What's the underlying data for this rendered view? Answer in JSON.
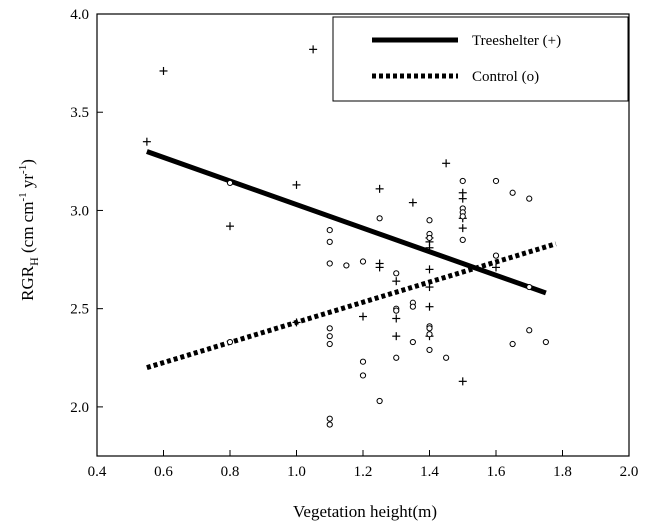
{
  "chart_data": {
    "type": "scatter",
    "title": "",
    "xlabel": "Vegetation height(m)",
    "ylabel": {
      "main": "RGR",
      "sub": "H",
      "unit_open": " (cm cm",
      "exp1": "-1",
      "unit_mid": " yr",
      "exp2": "-1",
      "unit_close": ")"
    },
    "xlim": [
      0.4,
      2.0
    ],
    "ylim": [
      1.75,
      4.0
    ],
    "x_ticks": [
      "0.4",
      "0.6",
      "0.8",
      "1.0",
      "1.2",
      "1.4",
      "1.6",
      "1.8",
      "2.0"
    ],
    "y_ticks": [
      "2.0",
      "2.5",
      "3.0",
      "3.5",
      "4.0"
    ],
    "legend_position": "top-right",
    "series": [
      {
        "name": "Treeshelter (+)",
        "marker": "+",
        "line_style": "solid",
        "regression": {
          "x": [
            0.55,
            1.75
          ],
          "y": [
            3.3,
            2.58
          ]
        },
        "points": [
          [
            0.55,
            3.35
          ],
          [
            0.6,
            3.71
          ],
          [
            0.8,
            2.92
          ],
          [
            1.0,
            3.13
          ],
          [
            1.0,
            2.43
          ],
          [
            1.05,
            3.82
          ],
          [
            1.2,
            2.46
          ],
          [
            1.25,
            3.11
          ],
          [
            1.25,
            2.73
          ],
          [
            1.25,
            2.71
          ],
          [
            1.3,
            2.64
          ],
          [
            1.3,
            2.45
          ],
          [
            1.3,
            2.36
          ],
          [
            1.35,
            3.04
          ],
          [
            1.4,
            2.86
          ],
          [
            1.4,
            2.84
          ],
          [
            1.4,
            2.81
          ],
          [
            1.4,
            2.7
          ],
          [
            1.4,
            2.61
          ],
          [
            1.4,
            2.51
          ],
          [
            1.4,
            2.36
          ],
          [
            1.45,
            3.24
          ],
          [
            1.5,
            3.09
          ],
          [
            1.5,
            3.06
          ],
          [
            1.5,
            2.96
          ],
          [
            1.5,
            2.91
          ],
          [
            1.5,
            2.13
          ],
          [
            1.6,
            2.71
          ]
        ]
      },
      {
        "name": "Control (o)",
        "marker": "o",
        "line_style": "dotted",
        "regression": {
          "x": [
            0.55,
            1.78
          ],
          "y": [
            2.2,
            2.83
          ]
        },
        "points": [
          [
            0.8,
            3.14
          ],
          [
            0.8,
            2.33
          ],
          [
            1.1,
            2.9
          ],
          [
            1.1,
            2.84
          ],
          [
            1.1,
            2.73
          ],
          [
            1.1,
            2.4
          ],
          [
            1.1,
            2.36
          ],
          [
            1.1,
            2.32
          ],
          [
            1.1,
            1.94
          ],
          [
            1.1,
            1.91
          ],
          [
            1.15,
            2.72
          ],
          [
            1.2,
            2.74
          ],
          [
            1.2,
            2.23
          ],
          [
            1.2,
            2.16
          ],
          [
            1.25,
            2.96
          ],
          [
            1.25,
            2.03
          ],
          [
            1.3,
            2.68
          ],
          [
            1.3,
            2.5
          ],
          [
            1.3,
            2.49
          ],
          [
            1.3,
            2.25
          ],
          [
            1.35,
            2.53
          ],
          [
            1.35,
            2.51
          ],
          [
            1.35,
            2.33
          ],
          [
            1.4,
            2.95
          ],
          [
            1.4,
            2.88
          ],
          [
            1.4,
            2.86
          ],
          [
            1.4,
            2.41
          ],
          [
            1.4,
            2.4
          ],
          [
            1.4,
            2.37
          ],
          [
            1.4,
            2.29
          ],
          [
            1.45,
            2.25
          ],
          [
            1.5,
            3.15
          ],
          [
            1.5,
            3.01
          ],
          [
            1.5,
            2.99
          ],
          [
            1.5,
            2.97
          ],
          [
            1.5,
            2.85
          ],
          [
            1.6,
            3.15
          ],
          [
            1.6,
            2.77
          ],
          [
            1.65,
            3.09
          ],
          [
            1.65,
            2.32
          ],
          [
            1.7,
            3.06
          ],
          [
            1.7,
            2.61
          ],
          [
            1.7,
            2.39
          ],
          [
            1.75,
            2.33
          ]
        ]
      }
    ]
  }
}
